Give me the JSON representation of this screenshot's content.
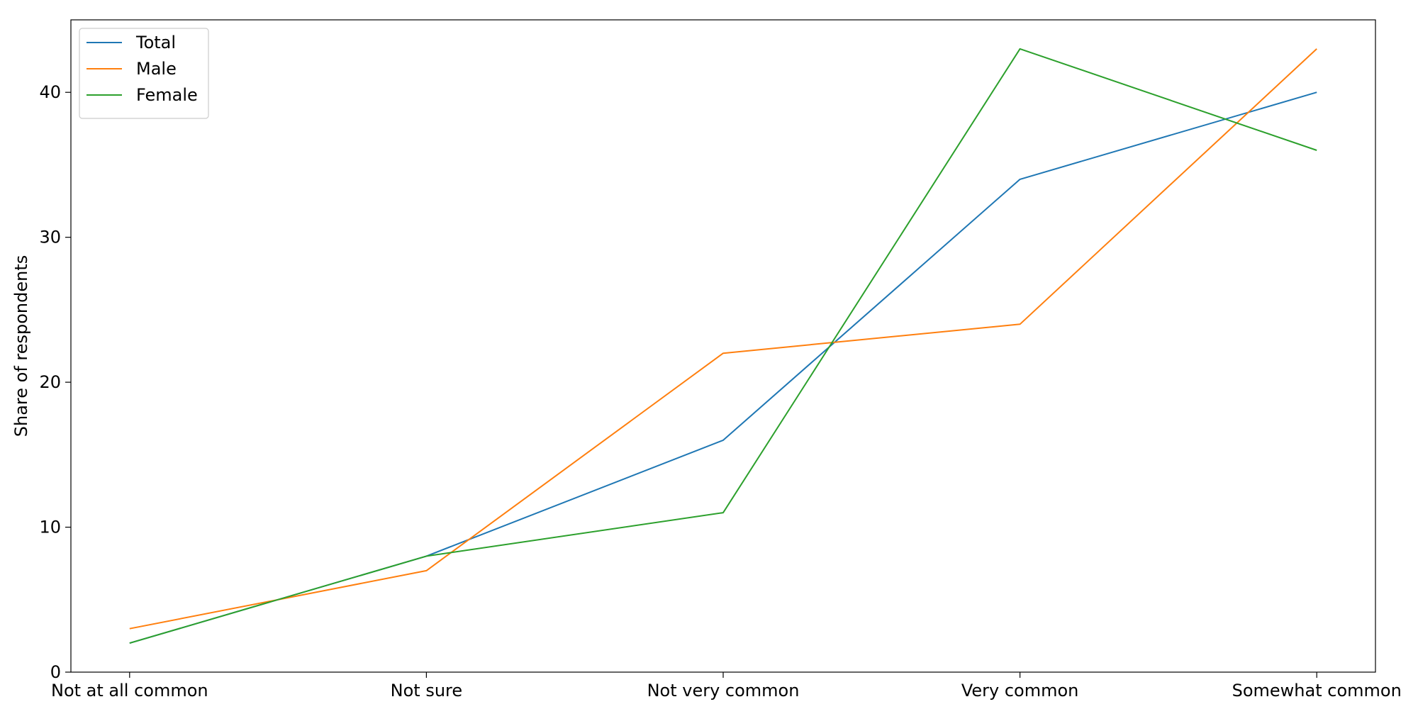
{
  "chart_data": {
    "type": "line",
    "title": "",
    "xlabel": "",
    "ylabel": "Share of respondents",
    "categories": [
      "Not at all common",
      "Not sure",
      "Not very common",
      "Very common",
      "Somewhat common"
    ],
    "ylim": [
      0,
      45
    ],
    "yticks": [
      0,
      10,
      20,
      30,
      40
    ],
    "grid": false,
    "legend_position": "top-left",
    "series": [
      {
        "name": "Total",
        "color": "#1f77b4",
        "values": [
          2,
          8,
          16,
          34,
          40
        ]
      },
      {
        "name": "Male",
        "color": "#ff7f0e",
        "values": [
          3,
          7,
          22,
          24,
          43
        ]
      },
      {
        "name": "Female",
        "color": "#2ca02c",
        "values": [
          2,
          8,
          11,
          43,
          36
        ]
      }
    ]
  }
}
